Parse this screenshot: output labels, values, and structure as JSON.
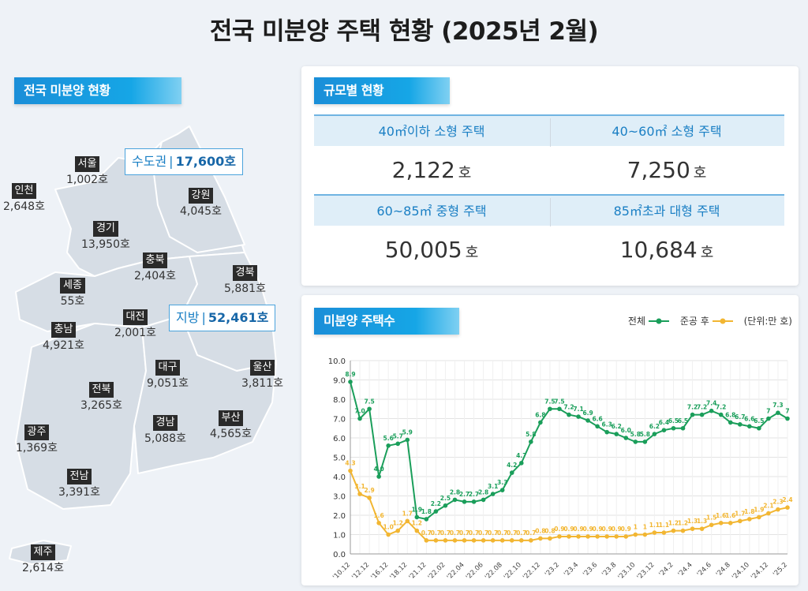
{
  "title": "전국 미분양 주택 현황  (2025년 2월)",
  "left_label": "전국 미분양 현황",
  "scale_label": "규모별 현황",
  "chart_label": "미분양 주택수",
  "zones": {
    "capital": {
      "name": "수도권",
      "value": "17,600호"
    },
    "local": {
      "name": "지방",
      "value": "52,461호"
    }
  },
  "regions": [
    {
      "name": "서울",
      "value": "1,002호"
    },
    {
      "name": "인천",
      "value": "2,648호"
    },
    {
      "name": "강원",
      "value": "4,045호"
    },
    {
      "name": "경기",
      "value": "13,950호"
    },
    {
      "name": "충북",
      "value": "2,404호"
    },
    {
      "name": "경북",
      "value": "5,881호"
    },
    {
      "name": "세종",
      "value": "55호"
    },
    {
      "name": "대전",
      "value": "2,001호"
    },
    {
      "name": "충남",
      "value": "4,921호"
    },
    {
      "name": "대구",
      "value": "9,051호"
    },
    {
      "name": "울산",
      "value": "3,811호"
    },
    {
      "name": "전북",
      "value": "3,265호"
    },
    {
      "name": "경남",
      "value": "5,088호"
    },
    {
      "name": "부산",
      "value": "4,565호"
    },
    {
      "name": "광주",
      "value": "1,369호"
    },
    {
      "name": "전남",
      "value": "3,391호"
    },
    {
      "name": "제주",
      "value": "2,614호"
    }
  ],
  "scale": [
    {
      "label": "40㎡이하 소형 주택",
      "value": "2,122",
      "unit": "호"
    },
    {
      "label": "40~60㎡ 소형 주택",
      "value": "7,250",
      "unit": "호"
    },
    {
      "label": "60~85㎡ 중형 주택",
      "value": "50,005",
      "unit": "호"
    },
    {
      "label": "85㎡초과 대형 주택",
      "value": "10,684",
      "unit": "호"
    }
  ],
  "legend": {
    "total": "전체",
    "completed": "준공 후",
    "unit": "(단위:만 호)"
  },
  "colors": {
    "total": "#1a9e5a",
    "completed": "#f2b632",
    "accent": "#1a8ed8"
  },
  "chart_data": {
    "type": "line",
    "ylim": [
      0,
      10
    ],
    "yticks": [
      "0.0",
      "1.0",
      "2.0",
      "3.0",
      "4.0",
      "5.0",
      "6.0",
      "7.0",
      "8.0",
      "9.0",
      "10.0"
    ],
    "xtick_labels": [
      "'10.12",
      "'12.12",
      "'16.12",
      "'18.12",
      "'21.12",
      "'22.02",
      "'22.04",
      "'22.06",
      "'22.08",
      "'22.10",
      "'22.12",
      "'23.2",
      "'23.4",
      "'23.6",
      "'23.8",
      "'23.10",
      "'23.12",
      "'24.2",
      "'24.4",
      "'24.6",
      "'24.8",
      "'24.10",
      "'24.12",
      "'25.2"
    ],
    "series": [
      {
        "name": "전체",
        "values": [
          8.9,
          7.0,
          7.5,
          4.0,
          5.6,
          5.7,
          5.9,
          1.9,
          1.8,
          2.2,
          2.5,
          2.8,
          2.7,
          2.7,
          2.8,
          3.1,
          3.3,
          4.2,
          4.7,
          5.8,
          6.8,
          7.5,
          7.5,
          7.2,
          7.1,
          6.9,
          6.6,
          6.3,
          6.2,
          6.0,
          5.8,
          5.8,
          6.2,
          6.4,
          6.5,
          6.5,
          7.2,
          7.2,
          7.4,
          7.2,
          6.8,
          6.7,
          6.6,
          6.5,
          7.0,
          7.3,
          7.0
        ]
      },
      {
        "name": "준공 후",
        "values": [
          4.3,
          3.1,
          2.9,
          1.6,
          1.0,
          1.2,
          1.7,
          1.2,
          0.7,
          0.7,
          0.7,
          0.7,
          0.7,
          0.7,
          0.7,
          0.7,
          0.7,
          0.7,
          0.7,
          0.7,
          0.8,
          0.8,
          0.9,
          0.9,
          0.9,
          0.9,
          0.9,
          0.9,
          0.9,
          0.9,
          1.0,
          1.0,
          1.1,
          1.1,
          1.2,
          1.2,
          1.3,
          1.3,
          1.5,
          1.6,
          1.6,
          1.7,
          1.8,
          1.9,
          2.1,
          2.3,
          2.4
        ]
      }
    ],
    "total_labels": [
      "8.9",
      "7.0",
      "7.5",
      "4.0",
      "5.6",
      "5.7",
      "5.9",
      "1.9",
      "1.8",
      "2.2",
      "2.5",
      "2.8",
      "2.7",
      "2.7",
      "2.8",
      "3.1",
      "3.3",
      "4.2",
      "4.7",
      "5.8",
      "6.8",
      "7.5",
      "7.5",
      "7.2",
      "7.1",
      "6.9",
      "6.6",
      "6.3",
      "6.2",
      "6.0",
      "5.8",
      "5.8",
      "6.2",
      "6.4",
      "6.5",
      "6.5",
      "7.2",
      "7.2",
      "7.4",
      "7.2",
      "6.8",
      "6.7",
      "6.6",
      "6.5",
      "7",
      "7.3",
      "7"
    ],
    "completed_labels": [
      "4.3",
      "3.1",
      "2.9",
      "1.6",
      "1.0",
      "1.2",
      "1.7",
      "1.2",
      "0.7",
      "0.7",
      "0.7",
      "0.7",
      "0.7",
      "0.7",
      "0.7",
      "0.7",
      "0.7",
      "0.7",
      "0.7",
      "0.7",
      "0.8",
      "0.8",
      "0.9",
      "0.9",
      "0.9",
      "0.9",
      "0.9",
      "0.9",
      "0.9",
      "0.9",
      "1",
      "1",
      "1.1",
      "1.1",
      "1.2",
      "1.2",
      "1.3",
      "1.3",
      "1.5",
      "1.6",
      "1.6",
      "1.7",
      "1.8",
      "1.9",
      "2.1",
      "2.3",
      "2.4"
    ]
  }
}
